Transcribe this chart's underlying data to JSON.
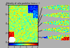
{
  "title": "Velocity of coke particles (mm s⁻¹)",
  "background_color": "#b0b0b0",
  "main_xlim": [
    0,
    8
  ],
  "main_ylim": [
    0,
    8
  ],
  "side_labels": [
    "z=4.0 - 4.5m",
    "z=3.5 - 4.0m",
    "z=3.0 - 3.5m",
    "z=2.0 - 2.5m",
    "z=0.8 - 1.5m"
  ],
  "colorbar_range": [
    0,
    5
  ],
  "seed": 12
}
